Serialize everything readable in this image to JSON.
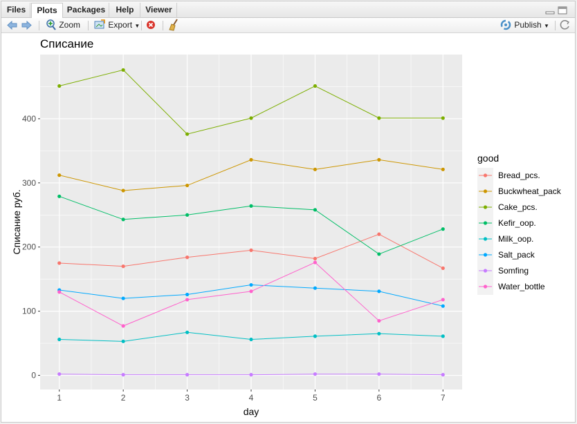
{
  "tabs": [
    "Files",
    "Plots",
    "Packages",
    "Help",
    "Viewer"
  ],
  "active_tab": "Plots",
  "toolbar": {
    "zoom": "Zoom",
    "export": "Export",
    "publish": "Publish"
  },
  "colors": {
    "Bread_pcs.": "#F8766D",
    "Buckwheat_pack": "#CD9600",
    "Cake_pcs.": "#7CAE00",
    "Kefir_oop.": "#00BE67",
    "Milk_oop.": "#00BFC4",
    "Salt_pack": "#00A9FF",
    "Somfing": "#C77CFF",
    "Water_bottle": "#FF61CC"
  },
  "chart_data": {
    "type": "line",
    "title": "Списание",
    "xlabel": "day",
    "ylabel": "Списание руб.",
    "x": [
      1,
      2,
      3,
      4,
      5,
      6,
      7
    ],
    "xlim": [
      0.7,
      7.3
    ],
    "ylim": [
      -22,
      500
    ],
    "yticks": [
      0,
      100,
      200,
      300,
      400
    ],
    "grid": true,
    "legend_title": "good",
    "legend_position": "right",
    "series": [
      {
        "name": "Bread_pcs.",
        "values": [
          175,
          170,
          184,
          195,
          182,
          220,
          167
        ]
      },
      {
        "name": "Buckwheat_pack",
        "values": [
          312,
          288,
          296,
          336,
          321,
          336,
          321
        ]
      },
      {
        "name": "Cake_pcs.",
        "values": [
          451,
          476,
          376,
          401,
          451,
          401,
          401
        ]
      },
      {
        "name": "Kefir_oop.",
        "values": [
          279,
          243,
          250,
          264,
          258,
          189,
          228
        ]
      },
      {
        "name": "Milk_oop.",
        "values": [
          56,
          53,
          67,
          56,
          61,
          65,
          61
        ]
      },
      {
        "name": "Salt_pack",
        "values": [
          133,
          120,
          126,
          141,
          136,
          131,
          108
        ]
      },
      {
        "name": "Somfing",
        "values": [
          2,
          1,
          1,
          1,
          2,
          2,
          1
        ]
      },
      {
        "name": "Water_bottle",
        "values": [
          130,
          77,
          118,
          131,
          176,
          85,
          118
        ]
      }
    ]
  }
}
